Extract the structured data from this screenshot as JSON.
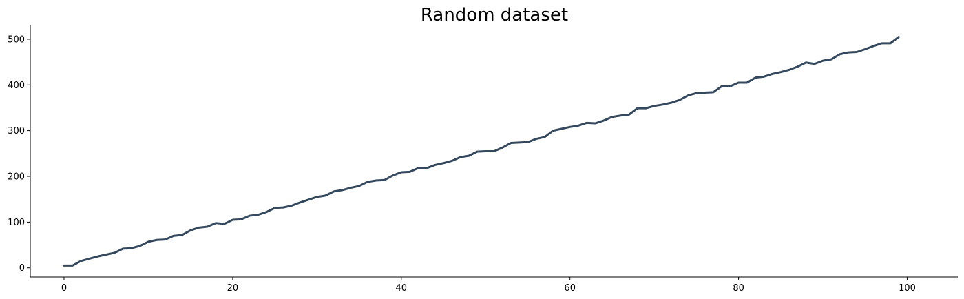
{
  "chart_data": {
    "type": "line",
    "title": "Random dataset",
    "xlabel": "",
    "ylabel": "",
    "xlim": [
      -4,
      106
    ],
    "ylim": [
      -20,
      530
    ],
    "x_ticks": [
      0,
      20,
      40,
      60,
      80,
      100
    ],
    "y_ticks": [
      0,
      100,
      200,
      300,
      400,
      500
    ],
    "grid": false,
    "legend": "none",
    "line_color": "#34495e",
    "series": [
      {
        "x": [
          0,
          1,
          2,
          3,
          4,
          5,
          6,
          7,
          8,
          9,
          10,
          11,
          12,
          13,
          14,
          15,
          16,
          17,
          18,
          19,
          20,
          21,
          22,
          23,
          24,
          25,
          26,
          27,
          28,
          29,
          30,
          31,
          32,
          33,
          34,
          35,
          36,
          37,
          38,
          39,
          40,
          41,
          42,
          43,
          44,
          45,
          46,
          47,
          48,
          49,
          50,
          51,
          52,
          53,
          54,
          55,
          56,
          57,
          58,
          59,
          60,
          61,
          62,
          63,
          64,
          65,
          66,
          67,
          68,
          69,
          70,
          71,
          72,
          73,
          74,
          75,
          76,
          77,
          78,
          79,
          80,
          81,
          82,
          83,
          84,
          85,
          86,
          87,
          88,
          89,
          90,
          91,
          92,
          93,
          94,
          95,
          96,
          97,
          98,
          99
        ],
        "values": [
          5,
          5,
          15,
          20,
          25,
          29,
          33,
          42,
          43,
          48,
          57,
          61,
          62,
          70,
          72,
          82,
          88,
          90,
          98,
          96,
          105,
          106,
          114,
          116,
          122,
          131,
          132,
          136,
          143,
          149,
          155,
          158,
          167,
          170,
          175,
          179,
          188,
          191,
          192,
          202,
          209,
          210,
          218,
          218,
          225,
          229,
          234,
          242,
          245,
          254,
          255,
          255,
          263,
          273,
          274,
          275,
          282,
          286,
          300,
          304,
          308,
          311,
          317,
          316,
          322,
          330,
          333,
          335,
          349,
          349,
          354,
          357,
          361,
          367,
          377,
          382,
          383,
          384,
          397,
          397,
          405,
          405,
          416,
          418,
          424,
          428,
          433,
          440,
          449,
          446,
          453,
          456,
          467,
          471,
          472,
          478,
          485,
          491,
          491,
          505
        ]
      }
    ]
  }
}
